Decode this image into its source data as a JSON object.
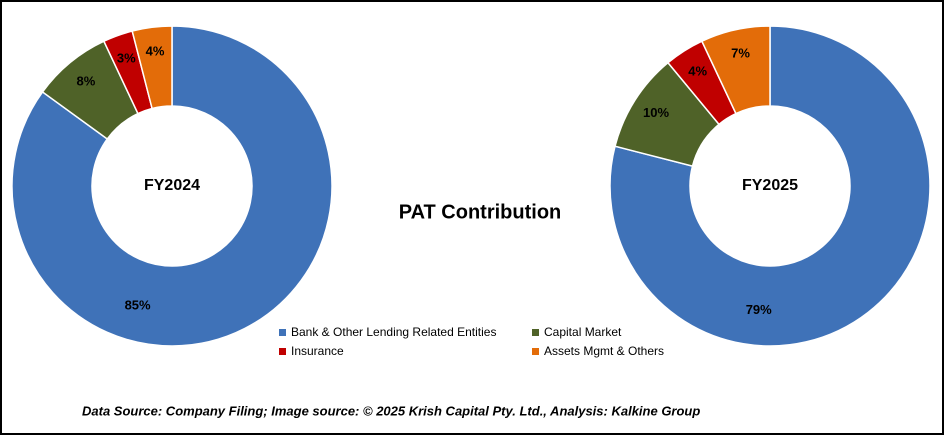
{
  "title": "PAT Contribution",
  "source": "Data Source: Company Filing; Image source: © 2025 Krish Capital Pty. Ltd., Analysis: Kalkine Group",
  "chart_data": [
    {
      "type": "donut",
      "label": "FY2024",
      "categories": [
        "Bank & Other Lending Related Entities",
        "Capital Market",
        "Insurance",
        "Assets Mgmt & Others"
      ],
      "values": [
        85,
        8,
        3,
        4
      ],
      "value_labels": [
        "85%",
        "8%",
        "3%",
        "4%"
      ],
      "colors": [
        "#3f72b8",
        "#4f6228",
        "#c00000",
        "#e36c09"
      ]
    },
    {
      "type": "donut",
      "label": "FY2025",
      "categories": [
        "Bank & Other Lending Related Entities",
        "Capital Market",
        "Insurance",
        "Assets Mgmt & Others"
      ],
      "values": [
        79,
        10,
        4,
        7
      ],
      "value_labels": [
        "79%",
        "10%",
        "4%",
        "7%"
      ],
      "colors": [
        "#3f72b8",
        "#4f6228",
        "#c00000",
        "#e36c09"
      ]
    }
  ]
}
